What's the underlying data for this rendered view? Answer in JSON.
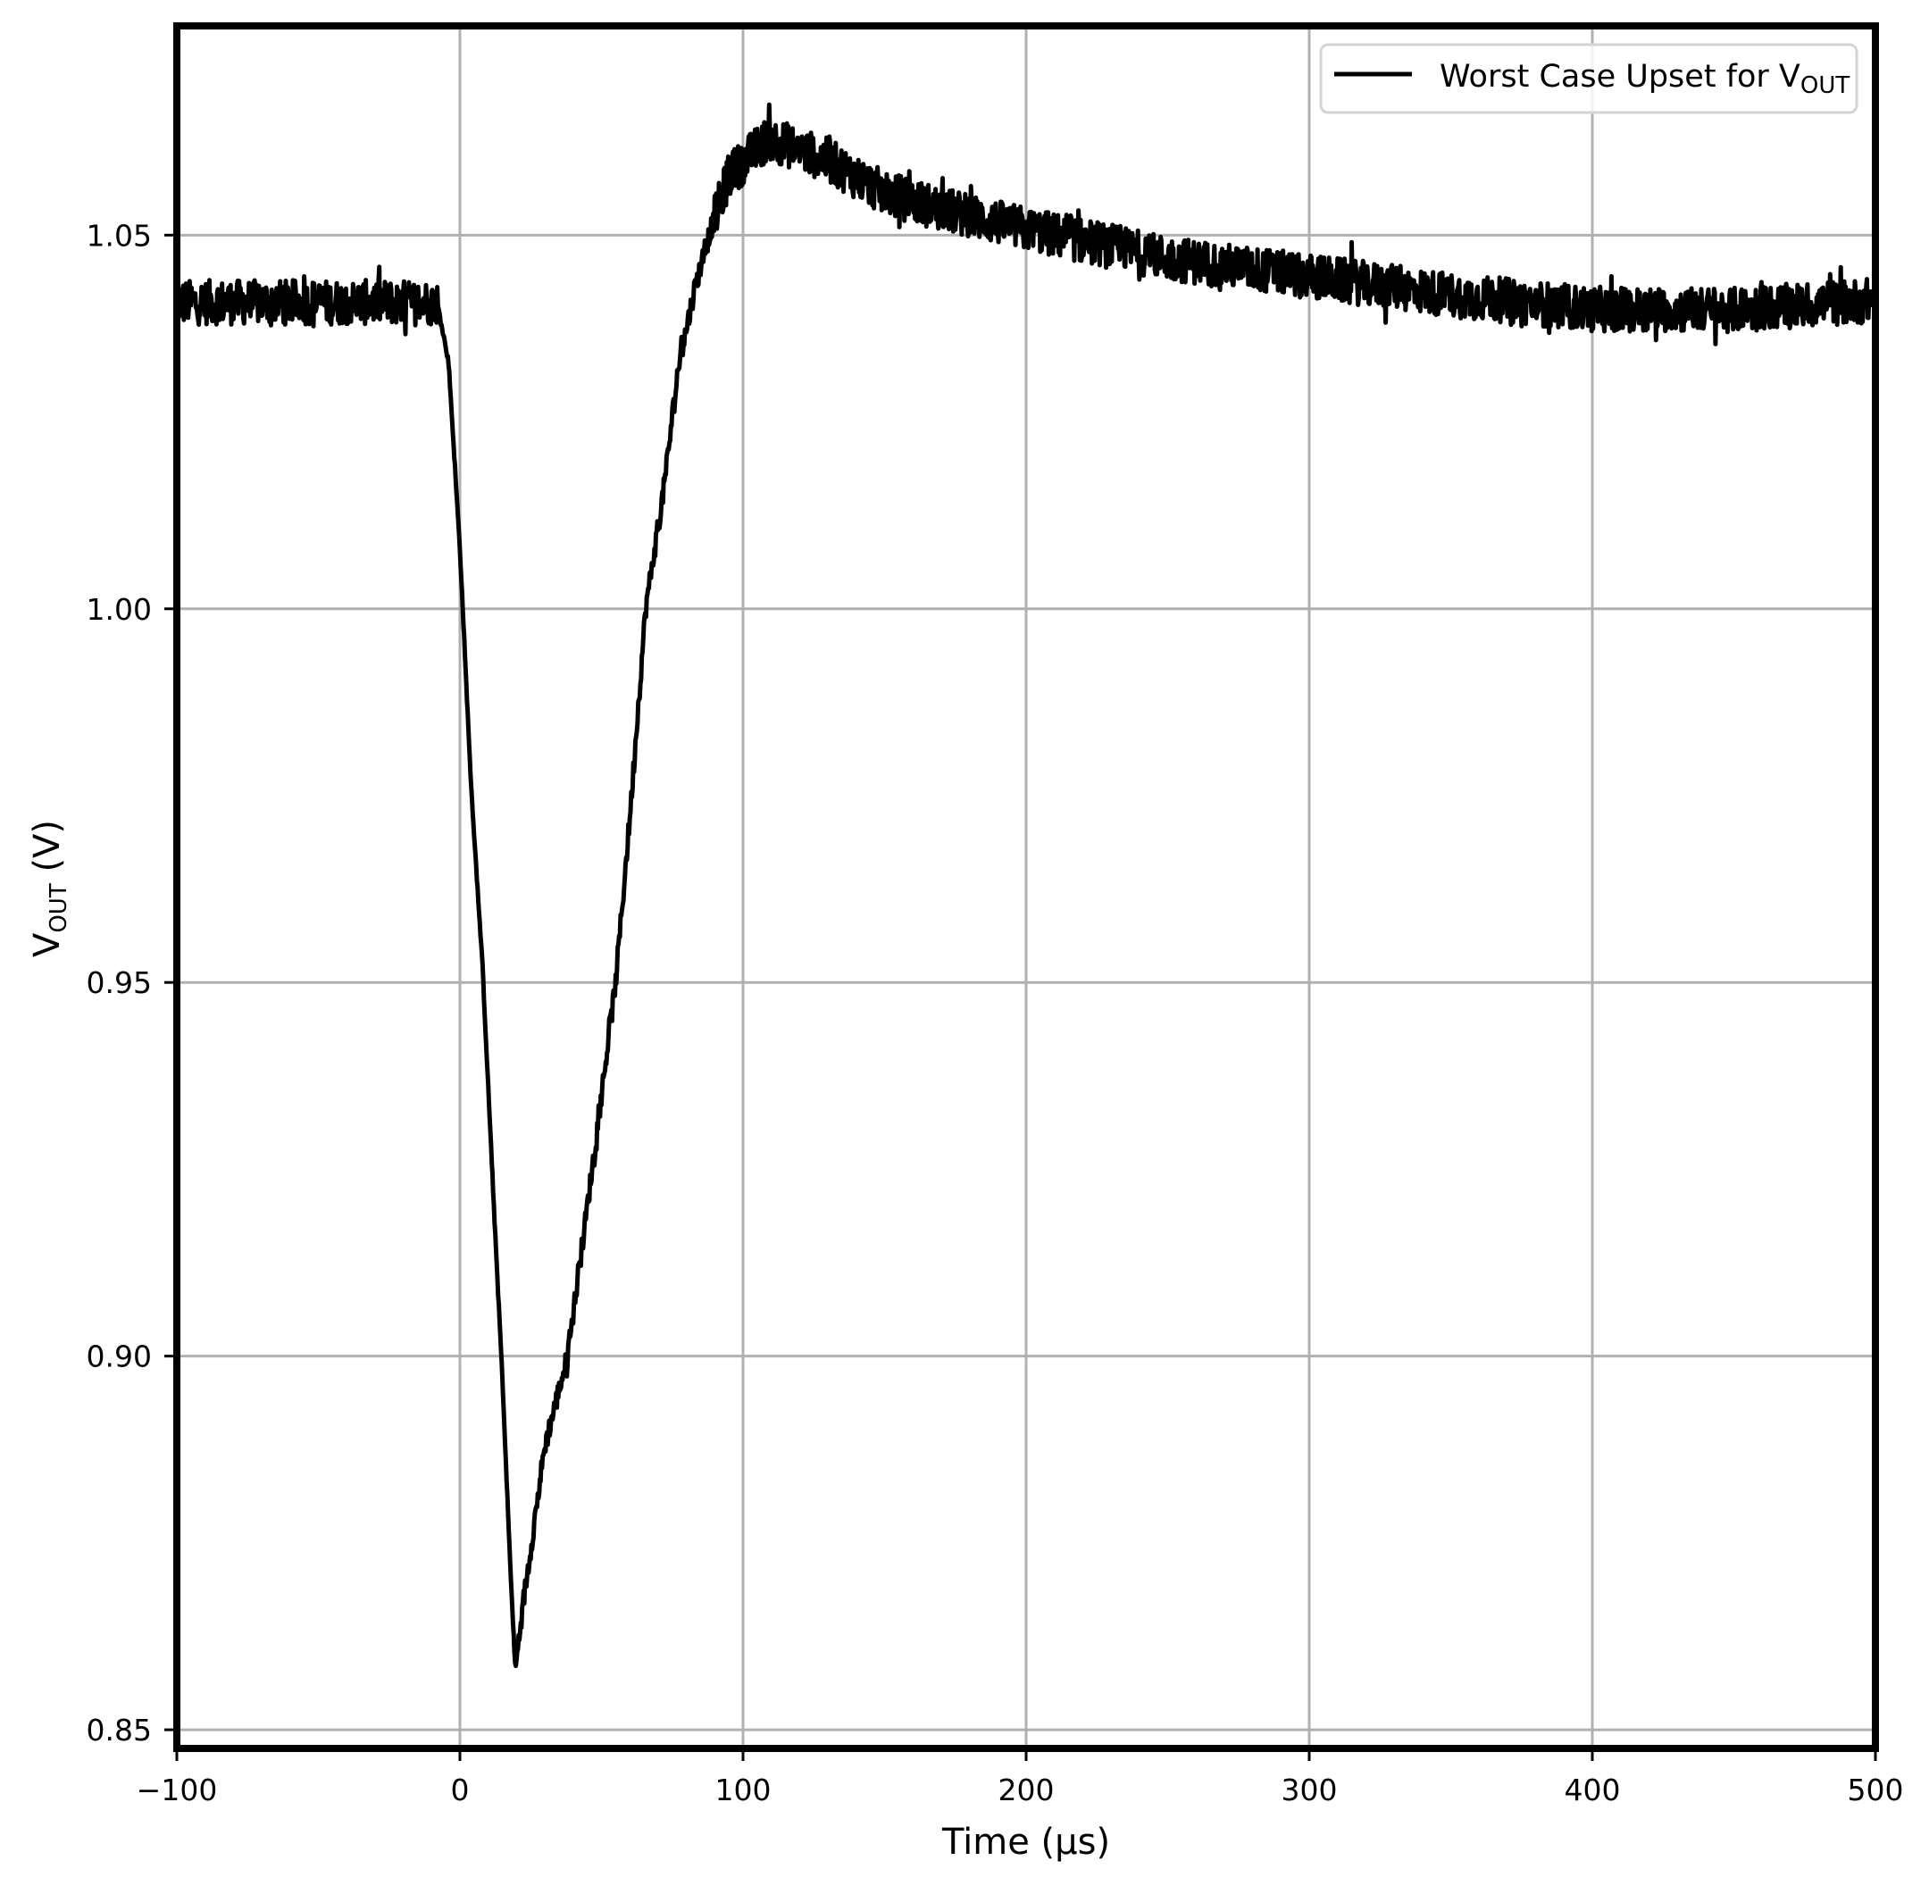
{
  "chart_data": {
    "type": "line",
    "title": "",
    "xlabel": "Time (µs)",
    "ylabel": "V_OUT (V)",
    "ylabel_parts": {
      "main": "V",
      "sub": "OUT",
      "suffix": " (V)"
    },
    "xlim": [
      -100,
      500
    ],
    "ylim": [
      0.8475,
      1.078
    ],
    "x_ticks": [
      -100,
      0,
      100,
      200,
      300,
      400,
      500
    ],
    "x_tick_labels": [
      "−100",
      "0",
      "100",
      "200",
      "300",
      "400",
      "500"
    ],
    "y_ticks": [
      0.85,
      0.9,
      0.95,
      1.0,
      1.05
    ],
    "y_tick_labels": [
      "0.85",
      "0.90",
      "0.95",
      "1.00",
      "1.05"
    ],
    "grid": true,
    "legend_position": "upper right",
    "series": [
      {
        "name": "Worst Case Upset for V_OUT",
        "legend_parts": {
          "main": "Worst Case Upset for V",
          "sub": "OUT"
        },
        "color": "#000000",
        "noise_amplitude_v": 0.003,
        "x": [
          -100,
          -8,
          -4,
          0,
          4,
          8,
          12,
          15,
          18,
          19.6,
          22,
          26,
          30,
          38,
          45,
          55,
          60,
          65.6,
          72,
          77,
          83,
          88,
          95,
          109,
          130,
          150,
          175,
          200,
          250,
          300,
          350,
          400,
          450,
          500
        ],
        "values": [
          1.041,
          1.041,
          1.033,
          1.008,
          0.976,
          0.952,
          0.92,
          0.897,
          0.87,
          0.858,
          0.866,
          0.877,
          0.888,
          0.9,
          0.92,
          0.95,
          0.972,
          1.0,
          1.016,
          1.032,
          1.043,
          1.05,
          1.058,
          1.063,
          1.06,
          1.0556,
          1.053,
          1.0508,
          1.0469,
          1.0445,
          1.042,
          1.0401,
          1.04,
          1.0413
        ]
      }
    ],
    "annotations": {
      "minimum": {
        "x": 19.6,
        "y": 0.858
      },
      "peak": {
        "x": 109,
        "y": 1.063
      },
      "baseline": 1.041
    }
  },
  "colors": {
    "frame": "#000000",
    "grid": "#b0b0b0",
    "trace": "#000000",
    "legend_border": "#d4d4d4",
    "background": "#ffffff"
  }
}
